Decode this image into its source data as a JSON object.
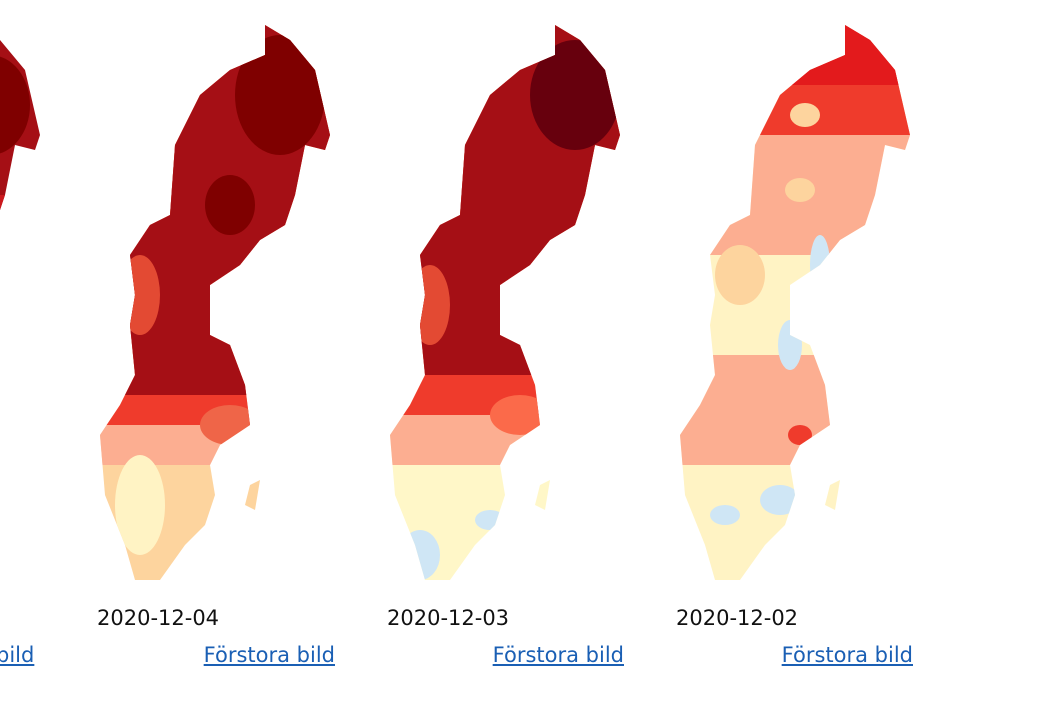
{
  "items": [
    {
      "link": "bild"
    },
    {
      "date": "2020-12-04",
      "link": "Förstora bild"
    },
    {
      "date": "2020-12-03",
      "link": "Förstora bild"
    },
    {
      "date": "2020-12-02",
      "link": "Förstora bild"
    }
  ]
}
